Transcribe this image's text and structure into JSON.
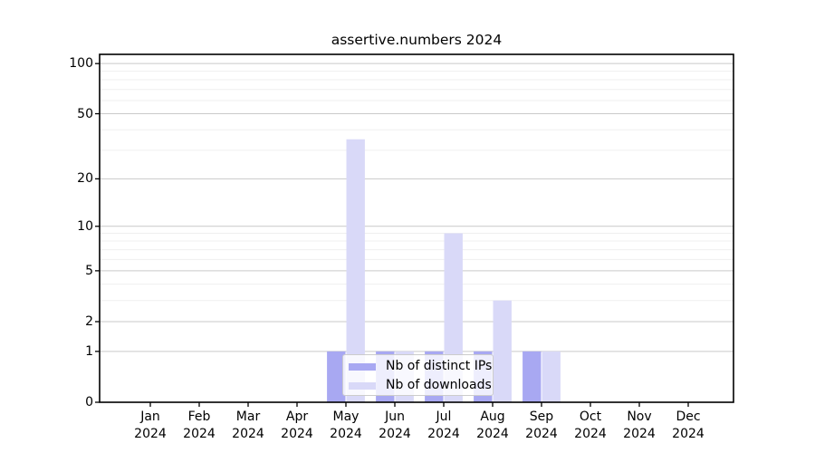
{
  "chart_data": {
    "type": "bar",
    "title": "assertive.numbers 2024",
    "categories": [
      "Jan",
      "Feb",
      "Mar",
      "Apr",
      "May",
      "Jun",
      "Jul",
      "Aug",
      "Sep",
      "Oct",
      "Nov",
      "Dec"
    ],
    "category_year": "2024",
    "series": [
      {
        "name": "Nb of distinct IPs",
        "color": "#a8a8f2",
        "values": [
          0,
          0,
          0,
          0,
          1,
          1,
          1,
          1,
          1,
          0,
          0,
          0
        ]
      },
      {
        "name": "Nb of downloads",
        "color": "#d9d9f8",
        "values": [
          0,
          0,
          0,
          0,
          35,
          1,
          9,
          3,
          1,
          0,
          0,
          0
        ]
      }
    ],
    "xlabel": "",
    "ylabel": "",
    "yscale": "log1p",
    "yticks": [
      0,
      1,
      2,
      5,
      10,
      20,
      50,
      100
    ],
    "minor_yticks": [
      3,
      4,
      6,
      7,
      8,
      9,
      30,
      40,
      60,
      70,
      80,
      90
    ],
    "ylim": [
      0,
      114
    ],
    "grid": "horizontal",
    "legend_position": "inside-bottom-center"
  },
  "colors": {
    "background": "#ffffff",
    "axis": "#000000",
    "grid_major": "#c9c9c9",
    "grid_minor": "#efefef",
    "legend_border": "#cccccc",
    "text": "#000000"
  }
}
